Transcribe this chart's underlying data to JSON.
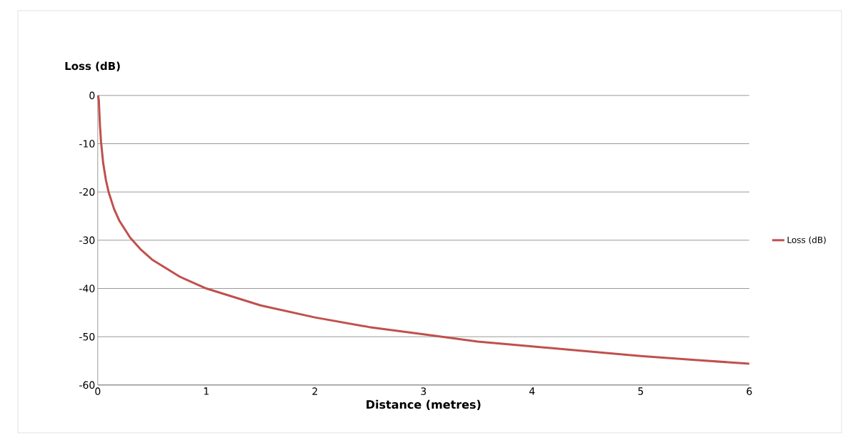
{
  "chart_data": {
    "type": "line",
    "xlabel": "Distance (metres)",
    "ylabel": "Loss (dB)",
    "series": [
      {
        "name": "Loss (dB)",
        "color": "#c0504d",
        "x": [
          0.003,
          0.01,
          0.02,
          0.03,
          0.05,
          0.075,
          0.1,
          0.15,
          0.2,
          0.3,
          0.4,
          0.5,
          0.75,
          1,
          1.5,
          2,
          2.5,
          3,
          3.5,
          4,
          4.5,
          5,
          5.5,
          6
        ],
        "values": [
          0,
          -1,
          -6,
          -9.5,
          -14,
          -17.5,
          -20,
          -23.5,
          -26,
          -29.5,
          -32,
          -34,
          -37.5,
          -40,
          -43.5,
          -46,
          -48,
          -49.5,
          -51,
          -52,
          -53,
          -54,
          -54.8,
          -55.6
        ]
      }
    ],
    "xlim": [
      0,
      6
    ],
    "xticks": [
      0,
      1,
      2,
      3,
      4,
      5,
      6
    ],
    "ylim": [
      -60,
      0
    ],
    "yticks": [
      -60,
      -50,
      -40,
      -30,
      -20,
      -10,
      0
    ],
    "grid": "y",
    "legend": "right",
    "marker": "none",
    "line_style": "solid"
  }
}
